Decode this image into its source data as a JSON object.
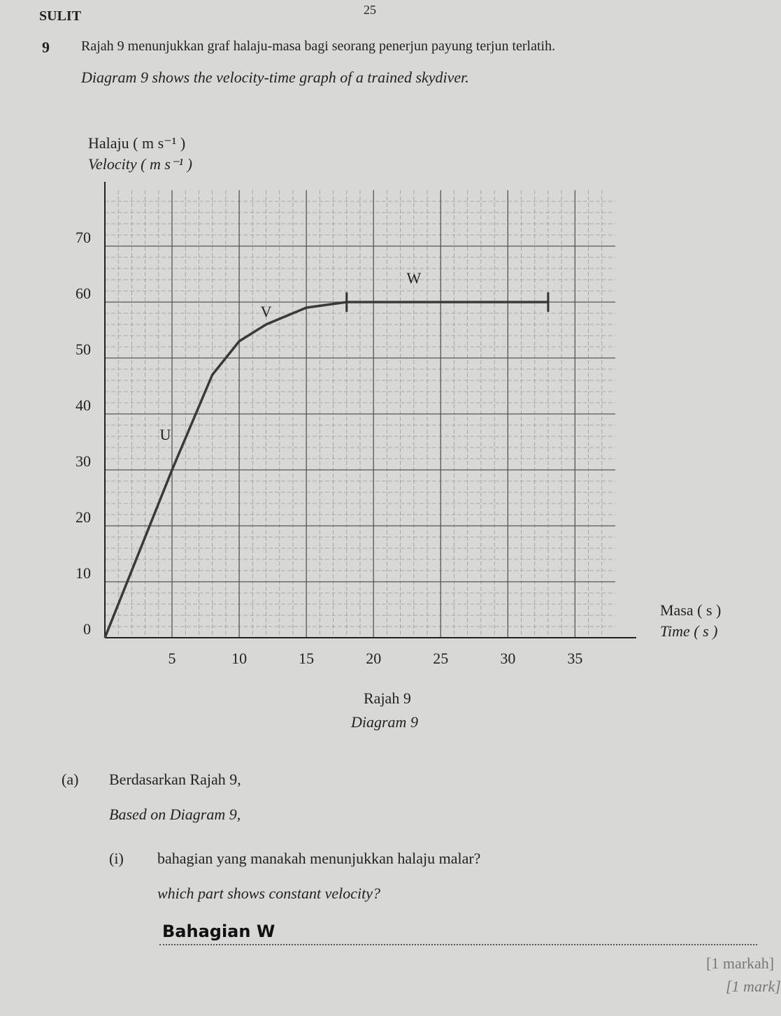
{
  "header": {
    "label": "SULIT",
    "page": "25"
  },
  "question": {
    "number": "9",
    "text_ms": "Rajah 9 menunjukkan graf halaju-masa bagi seorang penerjun payung terjun terlatih.",
    "text_en": "Diagram 9 shows the velocity-time graph of a trained skydiver."
  },
  "chart_data": {
    "type": "line",
    "y_label_ms": "Halaju ( m s⁻¹ )",
    "y_label_en": "Velocity ( m s⁻¹ )",
    "x_label_ms": "Masa ( s )",
    "x_label_en": "Time ( s )",
    "caption_ms": "Rajah 9",
    "caption_en": "Diagram 9",
    "x": [
      0,
      5,
      8,
      10,
      12,
      15,
      18,
      25,
      33
    ],
    "series": [
      {
        "color": "#3a3a3a",
        "values": [
          0,
          30,
          47,
          53,
          56,
          59,
          60,
          60,
          60
        ]
      }
    ],
    "boundaries": [
      18,
      33
    ],
    "annotations": [
      {
        "label": "U",
        "x": 4.5,
        "y": 36
      },
      {
        "label": "V",
        "x": 12,
        "y": 58
      },
      {
        "label": "W",
        "x": 23,
        "y": 64
      }
    ],
    "xlim": [
      0,
      38
    ],
    "ylim": [
      0,
      80
    ],
    "xticks": [
      5,
      10,
      15,
      20,
      25,
      30,
      35
    ],
    "yticks": [
      0,
      10,
      20,
      30,
      40,
      50,
      60,
      70
    ],
    "grid": true
  },
  "part_a": {
    "label": "(a)",
    "text_ms": "Berdasarkan Rajah 9,",
    "text_en": "Based on Diagram 9,",
    "sub_i": {
      "label": "(i)",
      "text_ms": "bahagian yang manakah menunjukkan halaju malar?",
      "text_en": "which part shows constant velocity?",
      "answer": "Bahagian W",
      "marks_ms": "[1 markah]",
      "marks_en": "[1 mark]"
    }
  }
}
